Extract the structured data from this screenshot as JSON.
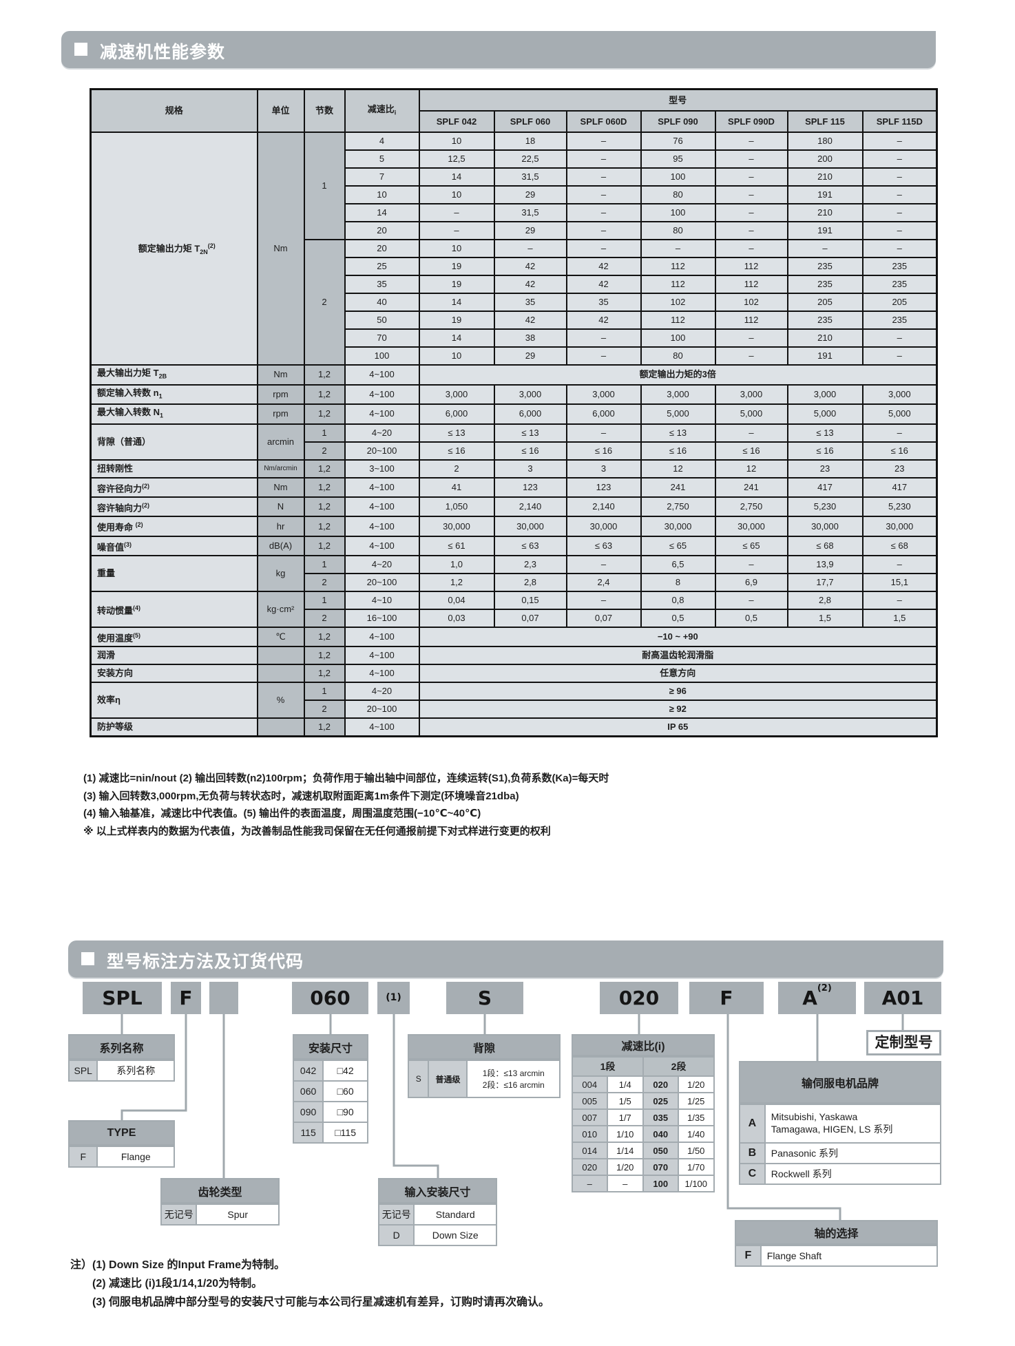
{
  "section1": {
    "title": "减速机性能参数"
  },
  "spec_table": {
    "headers": {
      "spec": "规格",
      "unit": "单位",
      "stage": "节数",
      "ratio": "减速比",
      "ratio_sub": "i",
      "model": "型号"
    },
    "models": [
      "SPLF 042",
      "SPLF 060",
      "SPLF 060D",
      "SPLF 090",
      "SPLF 090D",
      "SPLF 115",
      "SPLF 115D"
    ],
    "groups": [
      {
        "label": "额定输出力矩 T",
        "sub": "2N",
        "sup": "(2)",
        "unit": "Nm",
        "big": true,
        "stages": [
          {
            "stage": "1",
            "rows": [
              {
                "ratio": "4",
                "values": [
                  "10",
                  "18",
                  "–",
                  "76",
                  "–",
                  "180",
                  "–"
                ]
              },
              {
                "ratio": "5",
                "values": [
                  "12,5",
                  "22,5",
                  "–",
                  "95",
                  "–",
                  "200",
                  "–"
                ]
              },
              {
                "ratio": "7",
                "values": [
                  "14",
                  "31,5",
                  "–",
                  "100",
                  "–",
                  "210",
                  "–"
                ]
              },
              {
                "ratio": "10",
                "values": [
                  "10",
                  "29",
                  "–",
                  "80",
                  "–",
                  "191",
                  "–"
                ]
              },
              {
                "ratio": "14",
                "values": [
                  "–",
                  "31,5",
                  "–",
                  "100",
                  "–",
                  "210",
                  "–"
                ]
              },
              {
                "ratio": "20",
                "values": [
                  "–",
                  "29",
                  "–",
                  "80",
                  "–",
                  "191",
                  "–"
                ]
              }
            ]
          },
          {
            "stage": "2",
            "rows": [
              {
                "ratio": "20",
                "values": [
                  "10",
                  "–",
                  "–",
                  "–",
                  "–",
                  "–",
                  "–"
                ]
              },
              {
                "ratio": "25",
                "values": [
                  "19",
                  "42",
                  "42",
                  "112",
                  "112",
                  "235",
                  "235"
                ]
              },
              {
                "ratio": "35",
                "values": [
                  "19",
                  "42",
                  "42",
                  "112",
                  "112",
                  "235",
                  "235"
                ]
              },
              {
                "ratio": "40",
                "values": [
                  "14",
                  "35",
                  "35",
                  "102",
                  "102",
                  "205",
                  "205"
                ]
              },
              {
                "ratio": "50",
                "values": [
                  "19",
                  "42",
                  "42",
                  "112",
                  "112",
                  "235",
                  "235"
                ]
              },
              {
                "ratio": "70",
                "values": [
                  "14",
                  "38",
                  "–",
                  "100",
                  "–",
                  "210",
                  "–"
                ]
              },
              {
                "ratio": "100",
                "values": [
                  "10",
                  "29",
                  "–",
                  "80",
                  "–",
                  "191",
                  "–"
                ]
              }
            ]
          }
        ]
      },
      {
        "label": "最大输出力矩 T",
        "sub": "2B",
        "unit": "Nm",
        "stages": [
          {
            "stage": "1,2",
            "rows": [
              {
                "ratio": "4~100",
                "span": "额定输出力矩的3倍"
              }
            ]
          }
        ]
      },
      {
        "label": "额定输入转数 n",
        "sub": "1",
        "unit": "rpm",
        "stages": [
          {
            "stage": "1,2",
            "rows": [
              {
                "ratio": "4~100",
                "values": [
                  "3,000",
                  "3,000",
                  "3,000",
                  "3,000",
                  "3,000",
                  "3,000",
                  "3,000"
                ]
              }
            ]
          }
        ]
      },
      {
        "label": "最大输入转数 N",
        "sub": "1",
        "unit": "rpm",
        "stages": [
          {
            "stage": "1,2",
            "rows": [
              {
                "ratio": "4~100",
                "values": [
                  "6,000",
                  "6,000",
                  "6,000",
                  "5,000",
                  "5,000",
                  "5,000",
                  "5,000"
                ]
              }
            ]
          }
        ]
      },
      {
        "label": "背隙（普通）",
        "unit": "arcmin",
        "stages": [
          {
            "stage": "1",
            "rows": [
              {
                "ratio": "4~20",
                "values": [
                  "≤ 13",
                  "≤ 13",
                  "–",
                  "≤ 13",
                  "–",
                  "≤ 13",
                  "–"
                ]
              }
            ]
          },
          {
            "stage": "2",
            "rows": [
              {
                "ratio": "20~100",
                "values": [
                  "≤ 16",
                  "≤ 16",
                  "≤ 16",
                  "≤ 16",
                  "≤ 16",
                  "≤ 16",
                  "≤ 16"
                ]
              }
            ]
          }
        ]
      },
      {
        "label": "扭转刚性",
        "unit": "Nm/arcmin",
        "stages": [
          {
            "stage": "1,2",
            "rows": [
              {
                "ratio": "3~100",
                "values": [
                  "2",
                  "3",
                  "3",
                  "12",
                  "12",
                  "23",
                  "23"
                ]
              }
            ]
          }
        ]
      },
      {
        "label": "容许径向力",
        "sup": "(2)",
        "unit": "Nm",
        "stages": [
          {
            "stage": "1,2",
            "rows": [
              {
                "ratio": "4~100",
                "values": [
                  "41",
                  "123",
                  "123",
                  "241",
                  "241",
                  "417",
                  "417"
                ]
              }
            ]
          }
        ]
      },
      {
        "label": "容许轴向力",
        "sup": "(2)",
        "unit": "N",
        "stages": [
          {
            "stage": "1,2",
            "rows": [
              {
                "ratio": "4~100",
                "values": [
                  "1,050",
                  "2,140",
                  "2,140",
                  "2,750",
                  "2,750",
                  "5,230",
                  "5,230"
                ]
              }
            ]
          }
        ]
      },
      {
        "label": "使用寿命 ",
        "sup": "(2)",
        "unit": "hr",
        "stages": [
          {
            "stage": "1,2",
            "rows": [
              {
                "ratio": "4~100",
                "values": [
                  "30,000",
                  "30,000",
                  "30,000",
                  "30,000",
                  "30,000",
                  "30,000",
                  "30,000"
                ]
              }
            ]
          }
        ]
      },
      {
        "label": "噪音值",
        "sup": "(3)",
        "unit": "dB(A)",
        "stages": [
          {
            "stage": "1,2",
            "rows": [
              {
                "ratio": "4~100",
                "values": [
                  "≤ 61",
                  "≤ 63",
                  "≤ 63",
                  "≤ 65",
                  "≤ 65",
                  "≤ 68",
                  "≤ 68"
                ]
              }
            ]
          }
        ]
      },
      {
        "label": "重量",
        "unit": "kg",
        "stages": [
          {
            "stage": "1",
            "rows": [
              {
                "ratio": "4~20",
                "values": [
                  "1,0",
                  "2,3",
                  "–",
                  "6,5",
                  "–",
                  "13,9",
                  "–"
                ]
              }
            ]
          },
          {
            "stage": "2",
            "rows": [
              {
                "ratio": "20~100",
                "values": [
                  "1,2",
                  "2,8",
                  "2,4",
                  "8",
                  "6,9",
                  "17,7",
                  "15,1"
                ]
              }
            ]
          }
        ]
      },
      {
        "label": "转动惯量",
        "sup": "(4)",
        "unit": "kg·cm²",
        "stages": [
          {
            "stage": "1",
            "rows": [
              {
                "ratio": "4~10",
                "values": [
                  "0,04",
                  "0,15",
                  "–",
                  "0,8",
                  "–",
                  "2,8",
                  "–"
                ]
              }
            ]
          },
          {
            "stage": "2",
            "rows": [
              {
                "ratio": "16~100",
                "values": [
                  "0,03",
                  "0,07",
                  "0,07",
                  "0,5",
                  "0,5",
                  "1,5",
                  "1,5"
                ]
              }
            ]
          }
        ]
      },
      {
        "label": "使用温度",
        "sup": "(5)",
        "unit": "℃",
        "stages": [
          {
            "stage": "1,2",
            "rows": [
              {
                "ratio": "4~100",
                "span": "−10 ~ +90"
              }
            ]
          }
        ]
      },
      {
        "label": "润滑",
        "unit": "",
        "stages": [
          {
            "stage": "1,2",
            "rows": [
              {
                "ratio": "4~100",
                "span": "耐高温齿轮润滑脂"
              }
            ]
          }
        ]
      },
      {
        "label": "安装方向",
        "unit": "",
        "stages": [
          {
            "stage": "1,2",
            "rows": [
              {
                "ratio": "4~100",
                "span": "任意方向"
              }
            ]
          }
        ]
      },
      {
        "label": "效率η",
        "unit": "%",
        "stages": [
          {
            "stage": "1",
            "rows": [
              {
                "ratio": "4~20",
                "span": "≥ 96"
              }
            ]
          },
          {
            "stage": "2",
            "rows": [
              {
                "ratio": "20~100",
                "span": "≥ 92"
              }
            ]
          }
        ]
      },
      {
        "label": "防护等级",
        "unit": "",
        "stages": [
          {
            "stage": "1,2",
            "rows": [
              {
                "ratio": "4~100",
                "span": "IP 65"
              }
            ]
          }
        ]
      }
    ]
  },
  "notes": [
    "(1) 减速比=nin/nout (2) 输出回转数(n2)100rpm；负荷作用于输出轴中间部位，连续运转(S1),负荷系数(Ka)=每天时",
    "(3) 输入回转数3,000rpm,无负荷与转状态时，减速机取附面距离1m条件下测定(环境噪音21dba)",
    "(4) 输入轴基准，减速比中代表值。(5) 输出件的表面温度，周围温度范围(−10℃~40℃)",
    "※ 以上式样表内的数据为代表值，为改善制品性能我司保留在无任何通报前提下对式样进行变更的权利"
  ],
  "section2": {
    "title": "型号标注方法及订货代码"
  },
  "ordering": {
    "code": [
      {
        "text": "SPL"
      },
      {
        "text": "F"
      },
      {
        "text": ""
      },
      {
        "text": "060"
      },
      {
        "text": "(1)"
      },
      {
        "text": "S"
      },
      {
        "text": "020"
      },
      {
        "text": "F"
      },
      {
        "text": "A",
        "sup": "(2)"
      },
      {
        "text": "A01"
      }
    ],
    "tables": {
      "series": {
        "title": "系列名称",
        "rows": [
          [
            "SPL",
            "系列名称"
          ]
        ]
      },
      "type": {
        "title": "TYPE",
        "rows": [
          [
            "F",
            "Flange"
          ]
        ]
      },
      "gear": {
        "title": "齿轮类型",
        "rows": [
          [
            "无记号",
            "Spur"
          ]
        ]
      },
      "frame": {
        "title": "安装尺寸",
        "rows": [
          [
            "042",
            "□42"
          ],
          [
            "060",
            "□60"
          ],
          [
            "090",
            "□90"
          ],
          [
            "115",
            "□115"
          ]
        ]
      },
      "backlash": {
        "title": "背隙",
        "rows": [
          [
            "S",
            "普通级",
            "1段：≤13 arcmin\n2段：≤16 arcmin"
          ]
        ]
      },
      "input": {
        "title": "输入安装尺寸",
        "rows": [
          [
            "无记号",
            "Standard"
          ],
          [
            "D",
            "Down Size"
          ]
        ]
      },
      "ratio": {
        "title": "减速比(i)",
        "subheaders": [
          "1段",
          "2段"
        ],
        "rows": [
          [
            "004",
            "1/4",
            "020",
            "1/20"
          ],
          [
            "005",
            "1/5",
            "025",
            "1/25"
          ],
          [
            "007",
            "1/7",
            "035",
            "1/35"
          ],
          [
            "010",
            "1/10",
            "040",
            "1/40"
          ],
          [
            "014",
            "1/14",
            "050",
            "1/50"
          ],
          [
            "020",
            "1/20",
            "070",
            "1/70"
          ],
          [
            "–",
            "–",
            "100",
            "1/100"
          ]
        ]
      },
      "motor": {
        "title": "输伺服电机品牌",
        "rows": [
          [
            "A",
            "Mitsubishi, Yaskawa\nTamagawa, HIGEN, LS 系列"
          ],
          [
            "B",
            "Panasonic 系列"
          ],
          [
            "C",
            "Rockwell 系列"
          ]
        ]
      },
      "shaft": {
        "title": "轴的选择",
        "rows": [
          [
            "F",
            "Flange Shaft"
          ]
        ]
      }
    },
    "custom_label": "定制型号"
  },
  "footnotes": {
    "prefix": "注）",
    "items": [
      "(1) Down Size 的Input Frame为特制。",
      "(2) 减速比 (i)1段1/14,1/20为特制。",
      "(3) 伺服电机品牌中部分型号的安装尺寸可能与本公司行星减速机有差异，订购时请再次确认。"
    ]
  },
  "colors": {
    "section_bar": "#a6adb2",
    "table_header": "#c5cbcf",
    "table_cell": "#dde2e6",
    "code_box": "#a7aeb3",
    "border": "#111111"
  }
}
